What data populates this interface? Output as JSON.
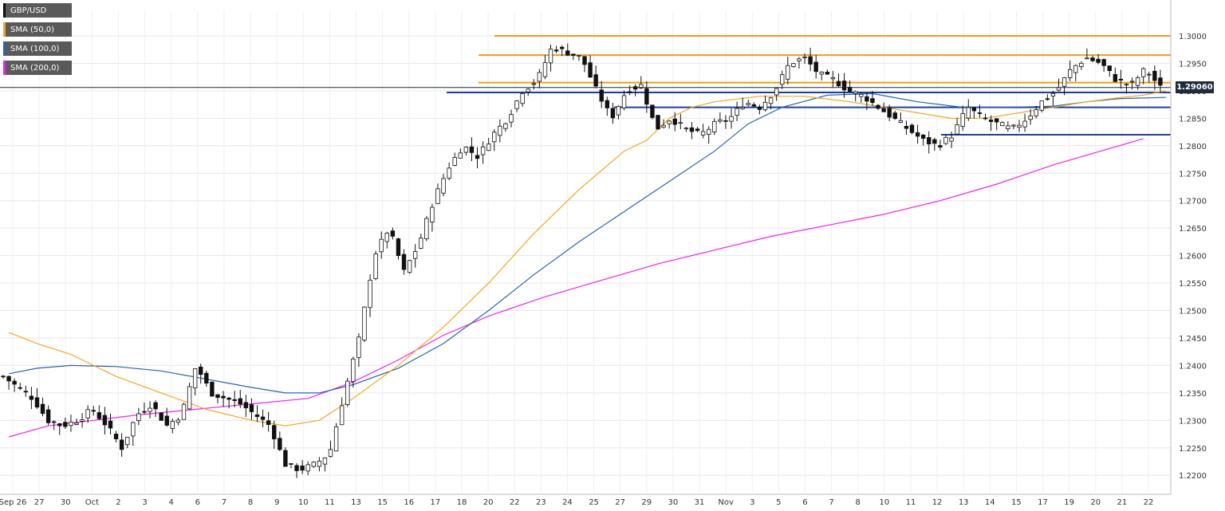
{
  "chart_data": {
    "type": "candlestick",
    "symbol": "GBP/USD",
    "indicators": [
      {
        "name": "SMA (50,0)",
        "color": "#f5a623"
      },
      {
        "name": "SMA (100,0)",
        "color": "#2a64b0"
      },
      {
        "name": "SMA (200,0)",
        "color": "#ee22ee"
      }
    ],
    "last_price": "1.29060",
    "ylim": [
      1.218,
      1.3045
    ],
    "y_ticks": [
      "1.3000",
      "1.2950",
      "1.2900",
      "1.2850",
      "1.2800",
      "1.2750",
      "1.2700",
      "1.2650",
      "1.2600",
      "1.2550",
      "1.2500",
      "1.2450",
      "1.2400",
      "1.2350",
      "1.2300",
      "1.2250",
      "1.2200"
    ],
    "x_ticks": [
      "Sep 26",
      "27",
      "30",
      "Oct",
      "2",
      "3",
      "4",
      "6",
      "7",
      "8",
      "9",
      "10",
      "11",
      "13",
      "15",
      "16",
      "17",
      "18",
      "20",
      "22",
      "23",
      "24",
      "25",
      "27",
      "29",
      "30",
      "31",
      "Nov",
      "3",
      "5",
      "6",
      "7",
      "8",
      "10",
      "11",
      "12",
      "13",
      "14",
      "15",
      "17",
      "19",
      "20",
      "21",
      "22"
    ],
    "grid": true,
    "closes": [
      1.238,
      1.236,
      1.234,
      1.23,
      1.229,
      1.23,
      1.232,
      1.229,
      1.225,
      1.231,
      1.233,
      1.229,
      1.231,
      1.24,
      1.235,
      1.234,
      1.233,
      1.231,
      1.229,
      1.222,
      1.221,
      1.222,
      1.224,
      1.235,
      1.245,
      1.26,
      1.265,
      1.257,
      1.262,
      1.27,
      1.276,
      1.28,
      1.278,
      1.282,
      1.285,
      1.29,
      1.292,
      1.298,
      1.297,
      1.296,
      1.29,
      1.285,
      1.29,
      1.291,
      1.283,
      1.285,
      1.283,
      1.282,
      1.284,
      1.285,
      1.288,
      1.287,
      1.29,
      1.295,
      1.296,
      1.293,
      1.292,
      1.29,
      1.289,
      1.287,
      1.285,
      1.283,
      1.281,
      1.28,
      1.282,
      1.287,
      1.285,
      1.284,
      1.283,
      1.285,
      1.288,
      1.29,
      1.294,
      1.296,
      1.295,
      1.292,
      1.291,
      1.294,
      1.2906
    ],
    "sma50": [
      [
        1,
        1.246
      ],
      [
        6,
        1.244
      ],
      [
        12,
        1.242
      ],
      [
        20,
        1.238
      ],
      [
        28,
        1.235
      ],
      [
        36,
        1.232
      ],
      [
        44,
        1.23
      ],
      [
        50,
        1.229
      ],
      [
        56,
        1.23
      ],
      [
        62,
        1.234
      ],
      [
        70,
        1.24
      ],
      [
        78,
        1.247
      ],
      [
        86,
        1.255
      ],
      [
        94,
        1.264
      ],
      [
        102,
        1.272
      ],
      [
        110,
        1.279
      ],
      [
        114,
        1.281
      ],
      [
        118,
        1.285
      ],
      [
        122,
        1.287
      ],
      [
        126,
        1.288
      ],
      [
        134,
        1.289
      ],
      [
        142,
        1.289
      ],
      [
        150,
        1.288
      ],
      [
        156,
        1.287
      ],
      [
        162,
        1.286
      ],
      [
        168,
        1.285
      ],
      [
        174,
        1.285
      ],
      [
        180,
        1.286
      ],
      [
        186,
        1.287
      ],
      [
        192,
        1.288
      ],
      [
        198,
        1.2888
      ],
      [
        202,
        1.2892
      ],
      [
        206,
        1.29
      ]
    ],
    "sma100": [
      [
        1,
        1.2385
      ],
      [
        6,
        1.2395
      ],
      [
        12,
        1.24
      ],
      [
        20,
        1.2398
      ],
      [
        28,
        1.239
      ],
      [
        36,
        1.2375
      ],
      [
        44,
        1.236
      ],
      [
        50,
        1.235
      ],
      [
        56,
        1.235
      ],
      [
        62,
        1.2365
      ],
      [
        70,
        1.2395
      ],
      [
        78,
        1.244
      ],
      [
        86,
        1.25
      ],
      [
        94,
        1.2565
      ],
      [
        102,
        1.2625
      ],
      [
        110,
        1.268
      ],
      [
        118,
        1.2735
      ],
      [
        126,
        1.279
      ],
      [
        132,
        1.284
      ],
      [
        138,
        1.287
      ],
      [
        146,
        1.2892
      ],
      [
        154,
        1.2895
      ],
      [
        162,
        1.288
      ],
      [
        170,
        1.287
      ],
      [
        178,
        1.287
      ],
      [
        186,
        1.2872
      ],
      [
        192,
        1.288
      ],
      [
        198,
        1.2886
      ],
      [
        206,
        1.2888
      ]
    ],
    "sma200": [
      [
        1,
        1.227
      ],
      [
        8,
        1.229
      ],
      [
        16,
        1.23
      ],
      [
        24,
        1.231
      ],
      [
        34,
        1.232
      ],
      [
        44,
        1.233
      ],
      [
        54,
        1.234
      ],
      [
        62,
        1.237
      ],
      [
        70,
        1.241
      ],
      [
        78,
        1.2455
      ],
      [
        86,
        1.249
      ],
      [
        96,
        1.2525
      ],
      [
        106,
        1.2555
      ],
      [
        116,
        1.2585
      ],
      [
        126,
        1.261
      ],
      [
        136,
        1.2635
      ],
      [
        146,
        1.2655
      ],
      [
        156,
        1.2675
      ],
      [
        166,
        1.27
      ],
      [
        176,
        1.273
      ],
      [
        186,
        1.2765
      ],
      [
        196,
        1.2795
      ],
      [
        202,
        1.2813
      ]
    ],
    "levels": [
      {
        "y": 1.3,
        "color": "#f39c12"
      },
      {
        "y": 1.2965,
        "color": "#f39c12"
      },
      {
        "y": 1.2915,
        "color": "#f39c12"
      },
      {
        "y": 1.2897,
        "color": "#1f3f9c"
      },
      {
        "y": 1.287,
        "color": "#1f3f9c"
      },
      {
        "y": 1.282,
        "color": "#1f3f9c"
      }
    ]
  }
}
